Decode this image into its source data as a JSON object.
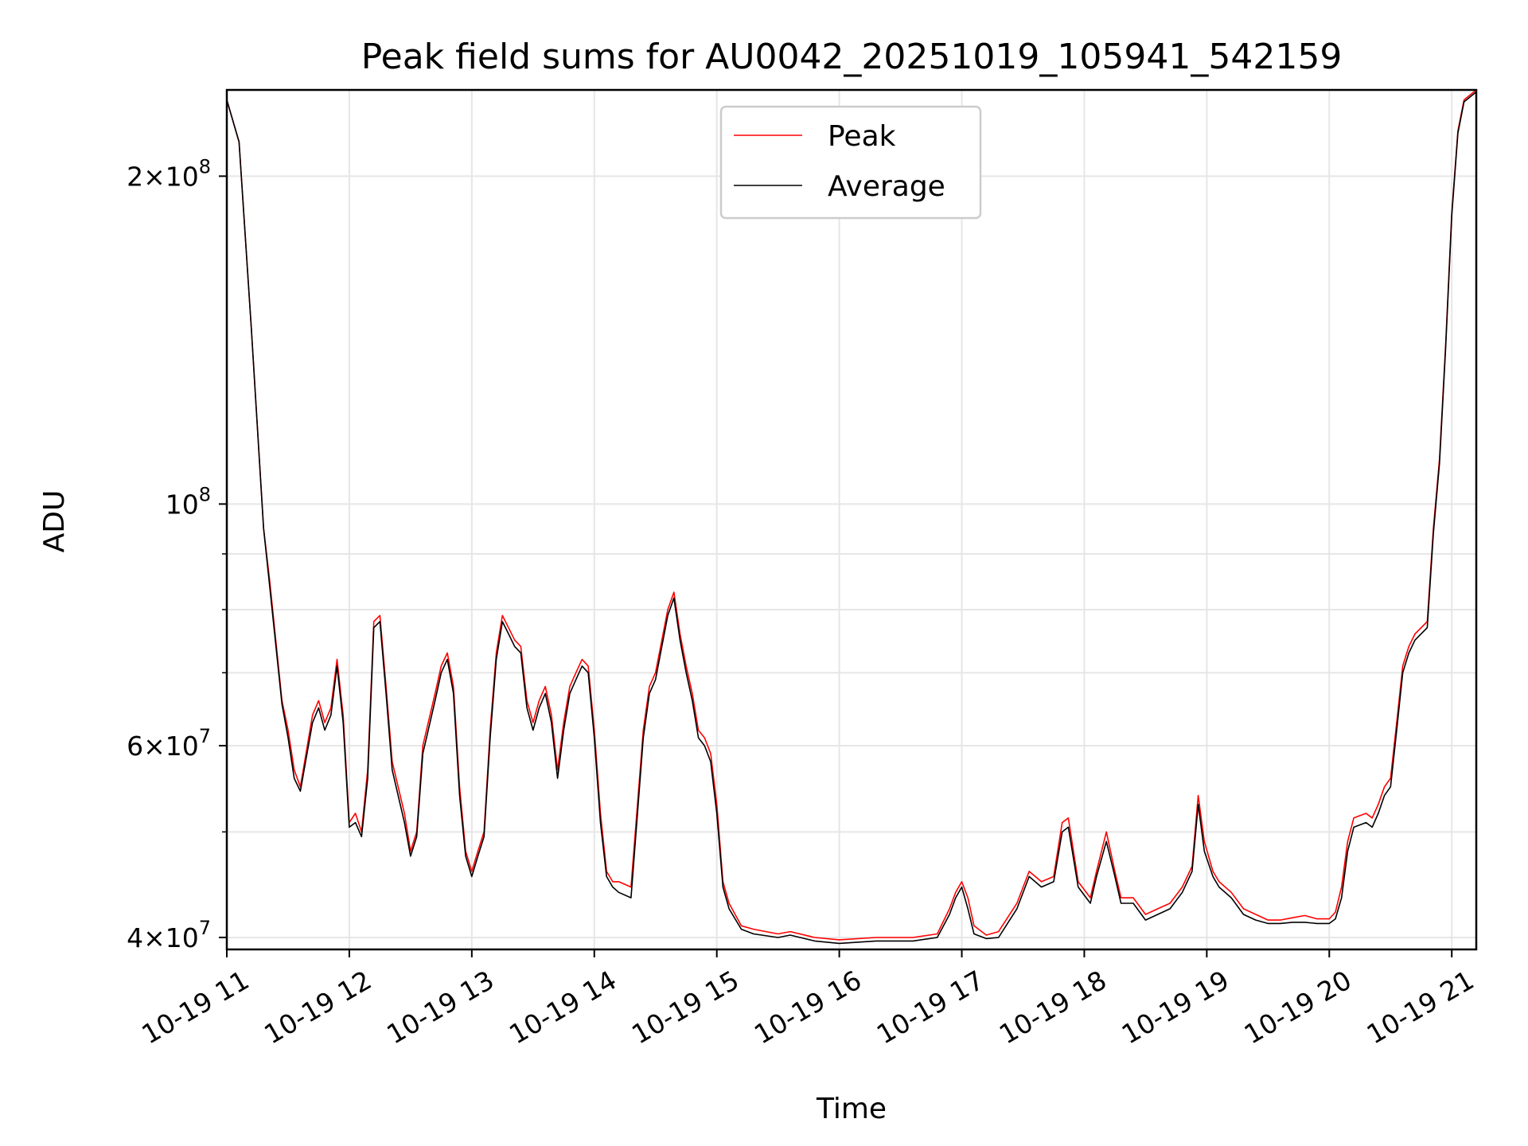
{
  "chart_data": {
    "type": "line",
    "title": "Peak field sums for AU0042_20251019_105941_542159",
    "xlabel": "Time",
    "ylabel": "ADU",
    "yscale": "log",
    "ylim": [
      39000000,
      240000000
    ],
    "xlim": [
      11.0,
      21.2
    ],
    "grid": true,
    "legend_position": "top-center",
    "x_ticks": [
      {
        "value": 11,
        "label": "10-19 11"
      },
      {
        "value": 12,
        "label": "10-19 12"
      },
      {
        "value": 13,
        "label": "10-19 13"
      },
      {
        "value": 14,
        "label": "10-19 14"
      },
      {
        "value": 15,
        "label": "10-19 15"
      },
      {
        "value": 16,
        "label": "10-19 16"
      },
      {
        "value": 17,
        "label": "10-19 17"
      },
      {
        "value": 18,
        "label": "10-19 18"
      },
      {
        "value": 19,
        "label": "10-19 19"
      },
      {
        "value": 20,
        "label": "10-19 20"
      },
      {
        "value": 21,
        "label": "10-19 21"
      }
    ],
    "y_ticks": [
      {
        "value": 40000000,
        "mant": "4",
        "exp": "7"
      },
      {
        "value": 60000000,
        "mant": "6",
        "exp": "7"
      },
      {
        "value": 100000000,
        "mant": "",
        "exp": "8"
      },
      {
        "value": 200000000,
        "mant": "2",
        "exp": "8"
      }
    ],
    "y_minor_ticks": [
      50000000,
      70000000,
      80000000,
      90000000
    ],
    "series": [
      {
        "name": "Peak",
        "color": "#ff0000",
        "x": [
          11.0,
          11.1,
          11.2,
          11.3,
          11.35,
          11.45,
          11.5,
          11.55,
          11.6,
          11.7,
          11.75,
          11.8,
          11.85,
          11.9,
          11.95,
          12.0,
          12.05,
          12.1,
          12.15,
          12.2,
          12.25,
          12.3,
          12.35,
          12.45,
          12.5,
          12.55,
          12.6,
          12.7,
          12.75,
          12.8,
          12.85,
          12.9,
          12.95,
          13.0,
          13.05,
          13.1,
          13.15,
          13.2,
          13.25,
          13.3,
          13.35,
          13.4,
          13.45,
          13.5,
          13.55,
          13.6,
          13.65,
          13.7,
          13.75,
          13.8,
          13.85,
          13.9,
          13.95,
          14.0,
          14.05,
          14.1,
          14.15,
          14.2,
          14.3,
          14.4,
          14.45,
          14.5,
          14.6,
          14.65,
          14.7,
          14.75,
          14.8,
          14.85,
          14.9,
          14.95,
          15.0,
          15.05,
          15.1,
          15.2,
          15.3,
          15.5,
          15.6,
          15.8,
          16.0,
          16.3,
          16.6,
          16.8,
          16.9,
          16.95,
          17.0,
          17.05,
          17.1,
          17.2,
          17.3,
          17.45,
          17.55,
          17.65,
          17.75,
          17.82,
          17.87,
          17.95,
          18.05,
          18.1,
          18.18,
          18.25,
          18.3,
          18.4,
          18.5,
          18.6,
          18.7,
          18.8,
          18.88,
          18.93,
          18.98,
          19.05,
          19.1,
          19.2,
          19.3,
          19.4,
          19.5,
          19.6,
          19.7,
          19.8,
          19.9,
          20.0,
          20.05,
          20.1,
          20.15,
          20.2,
          20.3,
          20.35,
          20.4,
          20.45,
          20.5,
          20.55,
          20.6,
          20.65,
          20.7,
          20.8,
          20.85,
          20.9,
          20.95,
          21.0,
          21.05,
          21.1,
          21.2
        ],
        "values": [
          235000000,
          215000000,
          145000000,
          95000000,
          85000000,
          66000000,
          62000000,
          57000000,
          55000000,
          64000000,
          66000000,
          63000000,
          65000000,
          72000000,
          64000000,
          51000000,
          52000000,
          50000000,
          57000000,
          78000000,
          79000000,
          68000000,
          58000000,
          52000000,
          48000000,
          50000000,
          60000000,
          67000000,
          71000000,
          73000000,
          68000000,
          55000000,
          48000000,
          46000000,
          48000000,
          50000000,
          62000000,
          73000000,
          79000000,
          77000000,
          75000000,
          74000000,
          66000000,
          63000000,
          66000000,
          68000000,
          64000000,
          57000000,
          63000000,
          68000000,
          70000000,
          72000000,
          71000000,
          62000000,
          52000000,
          46000000,
          45000000,
          45000000,
          44500000,
          62000000,
          68000000,
          70000000,
          80000000,
          83000000,
          76000000,
          71000000,
          67000000,
          62000000,
          61000000,
          59000000,
          53000000,
          45000000,
          43000000,
          41000000,
          40700000,
          40300000,
          40500000,
          40000000,
          39800000,
          40000000,
          40000000,
          40300000,
          42500000,
          44000000,
          45000000,
          43500000,
          41000000,
          40200000,
          40500000,
          43000000,
          46000000,
          45000000,
          45500000,
          51000000,
          51500000,
          45000000,
          43500000,
          46000000,
          50000000,
          46000000,
          43500000,
          43500000,
          42000000,
          42500000,
          43000000,
          44500000,
          46500000,
          54000000,
          49000000,
          46000000,
          45000000,
          44000000,
          42500000,
          42000000,
          41500000,
          41500000,
          41700000,
          41900000,
          41600000,
          41600000,
          42200000,
          44500000,
          49000000,
          51500000,
          52000000,
          51500000,
          53000000,
          55000000,
          56000000,
          63000000,
          71000000,
          74000000,
          76000000,
          78000000,
          95000000,
          110000000,
          140000000,
          185000000,
          220000000,
          235000000,
          240000000
        ]
      },
      {
        "name": "Average",
        "color": "#000000",
        "x": [
          11.0,
          11.1,
          11.2,
          11.3,
          11.35,
          11.45,
          11.5,
          11.55,
          11.6,
          11.7,
          11.75,
          11.8,
          11.85,
          11.9,
          11.95,
          12.0,
          12.05,
          12.1,
          12.15,
          12.2,
          12.25,
          12.3,
          12.35,
          12.45,
          12.5,
          12.55,
          12.6,
          12.7,
          12.75,
          12.8,
          12.85,
          12.9,
          12.95,
          13.0,
          13.05,
          13.1,
          13.15,
          13.2,
          13.25,
          13.3,
          13.35,
          13.4,
          13.45,
          13.5,
          13.55,
          13.6,
          13.65,
          13.7,
          13.75,
          13.8,
          13.85,
          13.9,
          13.95,
          14.0,
          14.05,
          14.1,
          14.15,
          14.2,
          14.3,
          14.4,
          14.45,
          14.5,
          14.6,
          14.65,
          14.7,
          14.75,
          14.8,
          14.85,
          14.9,
          14.95,
          15.0,
          15.05,
          15.1,
          15.2,
          15.3,
          15.5,
          15.6,
          15.8,
          16.0,
          16.3,
          16.6,
          16.8,
          16.9,
          16.95,
          17.0,
          17.05,
          17.1,
          17.2,
          17.3,
          17.45,
          17.55,
          17.65,
          17.75,
          17.82,
          17.87,
          17.95,
          18.05,
          18.1,
          18.18,
          18.25,
          18.3,
          18.4,
          18.5,
          18.6,
          18.7,
          18.8,
          18.88,
          18.93,
          18.98,
          19.05,
          19.1,
          19.2,
          19.3,
          19.4,
          19.5,
          19.6,
          19.7,
          19.8,
          19.9,
          20.0,
          20.05,
          20.1,
          20.15,
          20.2,
          20.3,
          20.35,
          20.4,
          20.45,
          20.5,
          20.55,
          20.6,
          20.65,
          20.7,
          20.8,
          20.85,
          20.9,
          20.95,
          21.0,
          21.05,
          21.1,
          21.2
        ],
        "values": [
          235000000,
          215000000,
          145000000,
          95000000,
          84000000,
          65500000,
          61000000,
          56000000,
          54500000,
          63000000,
          65000000,
          62000000,
          64000000,
          71000000,
          63000000,
          50500000,
          51000000,
          49500000,
          56000000,
          77000000,
          78000000,
          67000000,
          57000000,
          51000000,
          47500000,
          49500000,
          59000000,
          66000000,
          70000000,
          72000000,
          67000000,
          54000000,
          47500000,
          45500000,
          47500000,
          49500000,
          61000000,
          72000000,
          78000000,
          76000000,
          74000000,
          73000000,
          65000000,
          62000000,
          65000000,
          67000000,
          63000000,
          56000000,
          62000000,
          67000000,
          69000000,
          71000000,
          70000000,
          61000000,
          51000000,
          45500000,
          44500000,
          44000000,
          43500000,
          61000000,
          67000000,
          69000000,
          79000000,
          82000000,
          75000000,
          70000000,
          66000000,
          61000000,
          60000000,
          58000000,
          52000000,
          44500000,
          42500000,
          40700000,
          40300000,
          40000000,
          40200000,
          39700000,
          39500000,
          39700000,
          39700000,
          40000000,
          42000000,
          43500000,
          44500000,
          42500000,
          40300000,
          39900000,
          40000000,
          42500000,
          45500000,
          44500000,
          45000000,
          50000000,
          50500000,
          44500000,
          43000000,
          45500000,
          49000000,
          45500000,
          43000000,
          43000000,
          41500000,
          42000000,
          42500000,
          44000000,
          46000000,
          53000000,
          48000000,
          45500000,
          44500000,
          43500000,
          42000000,
          41500000,
          41200000,
          41200000,
          41300000,
          41300000,
          41200000,
          41200000,
          41600000,
          43500000,
          48000000,
          50500000,
          51000000,
          50500000,
          52000000,
          54000000,
          55000000,
          62000000,
          70000000,
          73000000,
          75000000,
          77000000,
          94000000,
          109000000,
          139000000,
          184000000,
          219000000,
          234000000,
          239000000
        ]
      }
    ]
  }
}
